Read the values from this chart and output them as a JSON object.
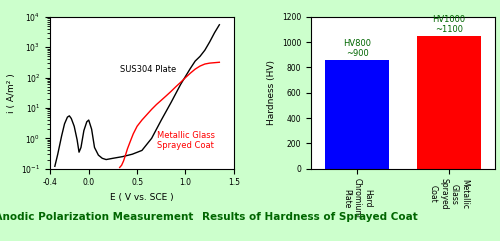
{
  "left_title": "Results of Anodic Polarization Measurement",
  "right_title": "Results of Hardness of Sprayed Coat",
  "left_xlabel": "E ( V vs. SCE )",
  "left_ylabel": "i ( A/m² )",
  "right_ylabel": "Hardness (HV)",
  "left_xlim": [
    -0.4,
    1.5
  ],
  "right_ylim": [
    0,
    1200
  ],
  "right_yticks": [
    0,
    200,
    400,
    600,
    800,
    1000,
    1200
  ],
  "bar_categories": [
    "Hard\nChromium\nPlate",
    "Metallic\nGlass\nSprayed\nCoat"
  ],
  "bar_values": [
    860,
    1050
  ],
  "bar_colors": [
    "#0000ff",
    "#ff0000"
  ],
  "bar_label_0": "HV800\n~900",
  "bar_label_1": "HV1000\n~1100",
  "background_color": "#ccffcc",
  "plot_bg": "#ffffff",
  "sus304_label": "SUS304 Plate",
  "metallic_label": "Metallic Glass\nSprayed Coat",
  "sus304_color": "#000000",
  "metallic_color": "#ff0000",
  "title_fontsize": 7.5,
  "axis_fontsize": 6.5,
  "tick_fontsize": 5.5,
  "label_fontsize": 6,
  "annotation_color": "#006600"
}
